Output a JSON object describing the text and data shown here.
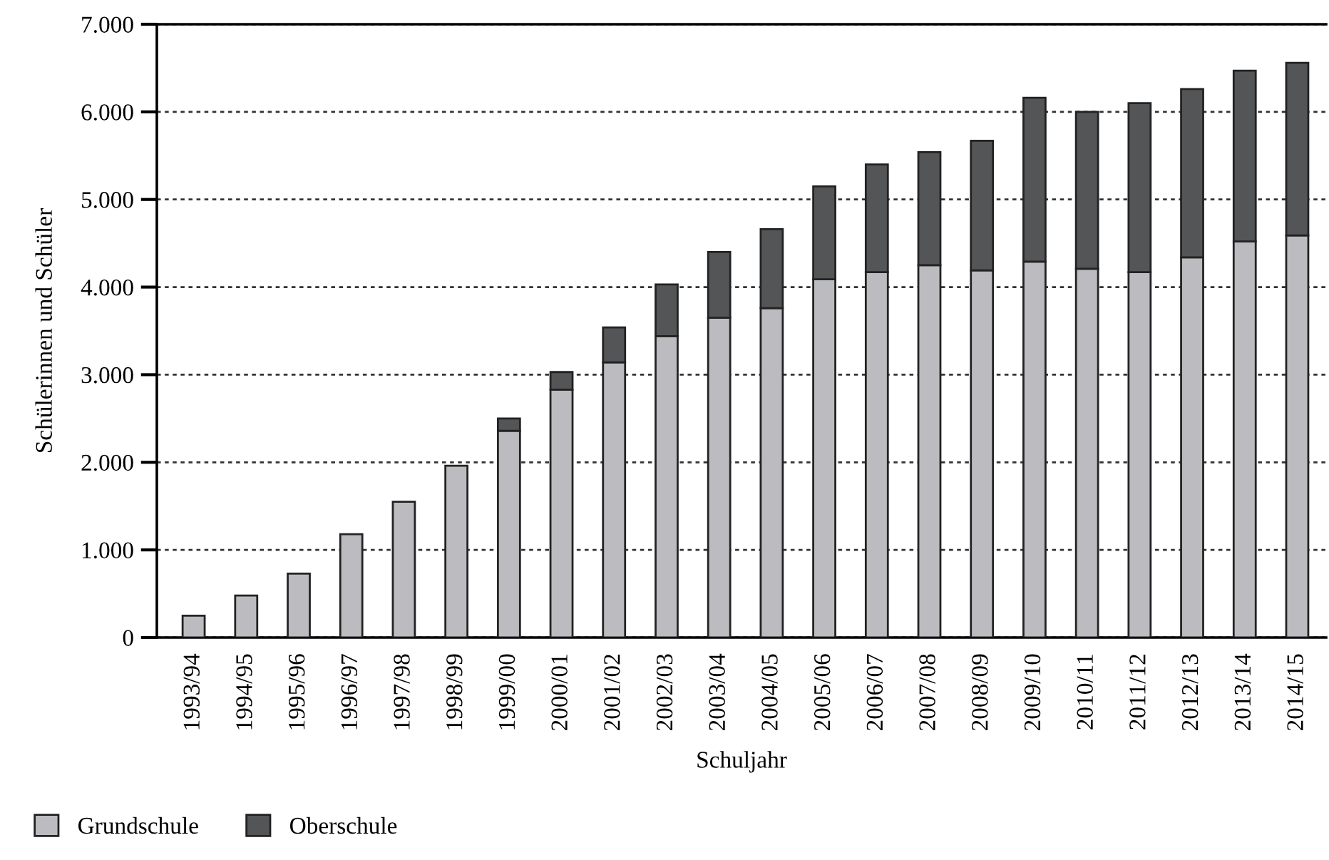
{
  "chart_data": {
    "type": "bar",
    "stacked": true,
    "xlabel": "Schuljahr",
    "ylabel": "Schülerinnen und Schüler",
    "categories": [
      "1993/94",
      "1994/95",
      "1995/96",
      "1996/97",
      "1997/98",
      "1998/99",
      "1999/00",
      "2000/01",
      "2001/02",
      "2002/03",
      "2003/04",
      "2004/05",
      "2005/06",
      "2006/07",
      "2007/08",
      "2008/09",
      "2009/10",
      "2010/11",
      "2011/12",
      "2012/13",
      "2013/14",
      "2014/15"
    ],
    "series": [
      {
        "name": "Grundschule",
        "color": "#bcbcc0",
        "values": [
          250,
          480,
          730,
          1180,
          1550,
          1960,
          2360,
          2830,
          3140,
          3440,
          3650,
          3760,
          4090,
          4170,
          4250,
          4190,
          4290,
          4210,
          4170,
          4340,
          4520,
          4590
        ]
      },
      {
        "name": "Oberschule",
        "color": "#545556",
        "values": [
          null,
          null,
          null,
          null,
          null,
          null,
          140,
          200,
          400,
          590,
          750,
          900,
          1060,
          1230,
          1290,
          1480,
          1870,
          1790,
          1930,
          1920,
          1950,
          1970
        ]
      }
    ],
    "ylim": [
      0,
      7000
    ],
    "yticks": [
      {
        "value": 0,
        "label": "0"
      },
      {
        "value": 1000,
        "label": "1.000"
      },
      {
        "value": 2000,
        "label": "2.000"
      },
      {
        "value": 3000,
        "label": "3.000"
      },
      {
        "value": 4000,
        "label": "4.000"
      },
      {
        "value": 5000,
        "label": "5.000"
      },
      {
        "value": 6000,
        "label": "6.000"
      },
      {
        "value": 7000,
        "label": "7.000"
      }
    ],
    "grid": "y",
    "legend": "bottom left"
  }
}
